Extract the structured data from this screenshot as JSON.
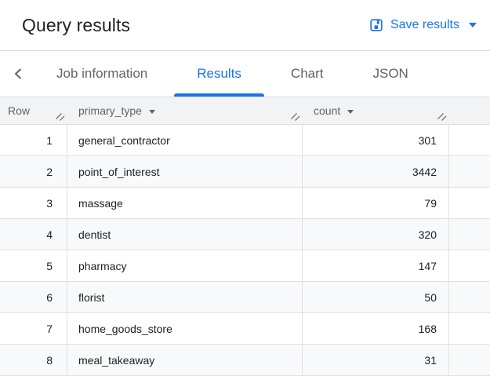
{
  "header": {
    "title": "Query results",
    "save_label": "Save results"
  },
  "tabs": [
    {
      "label": "Job information",
      "active": false
    },
    {
      "label": "Results",
      "active": true
    },
    {
      "label": "Chart",
      "active": false
    },
    {
      "label": "JSON",
      "active": false
    }
  ],
  "table": {
    "columns": [
      {
        "label": "Row",
        "has_menu": false,
        "resizable": true
      },
      {
        "label": "primary_type",
        "has_menu": true,
        "resizable": true
      },
      {
        "label": "count",
        "has_menu": true,
        "resizable": true
      }
    ],
    "rows": [
      {
        "row": "1",
        "primary_type": "general_contractor",
        "count": "301"
      },
      {
        "row": "2",
        "primary_type": "point_of_interest",
        "count": "3442"
      },
      {
        "row": "3",
        "primary_type": "massage",
        "count": "79"
      },
      {
        "row": "4",
        "primary_type": "dentist",
        "count": "320"
      },
      {
        "row": "5",
        "primary_type": "pharmacy",
        "count": "147"
      },
      {
        "row": "6",
        "primary_type": "florist",
        "count": "50"
      },
      {
        "row": "7",
        "primary_type": "home_goods_store",
        "count": "168"
      },
      {
        "row": "8",
        "primary_type": "meal_takeaway",
        "count": "31"
      }
    ]
  },
  "icons": {
    "save": "save-icon",
    "save_caret": "caret-down-icon",
    "tab_scroll": "chevron-left-icon",
    "column_menu": "caret-down-icon",
    "column_resize": "resize-handle-icon"
  },
  "colors": {
    "accent_blue": "#1a73e8",
    "title_text": "#202124",
    "secondary_text": "#5f6368",
    "header_bg": "#f1f3f4",
    "stripe_bg": "#f8f9fa",
    "border": "#e0e0e0"
  }
}
